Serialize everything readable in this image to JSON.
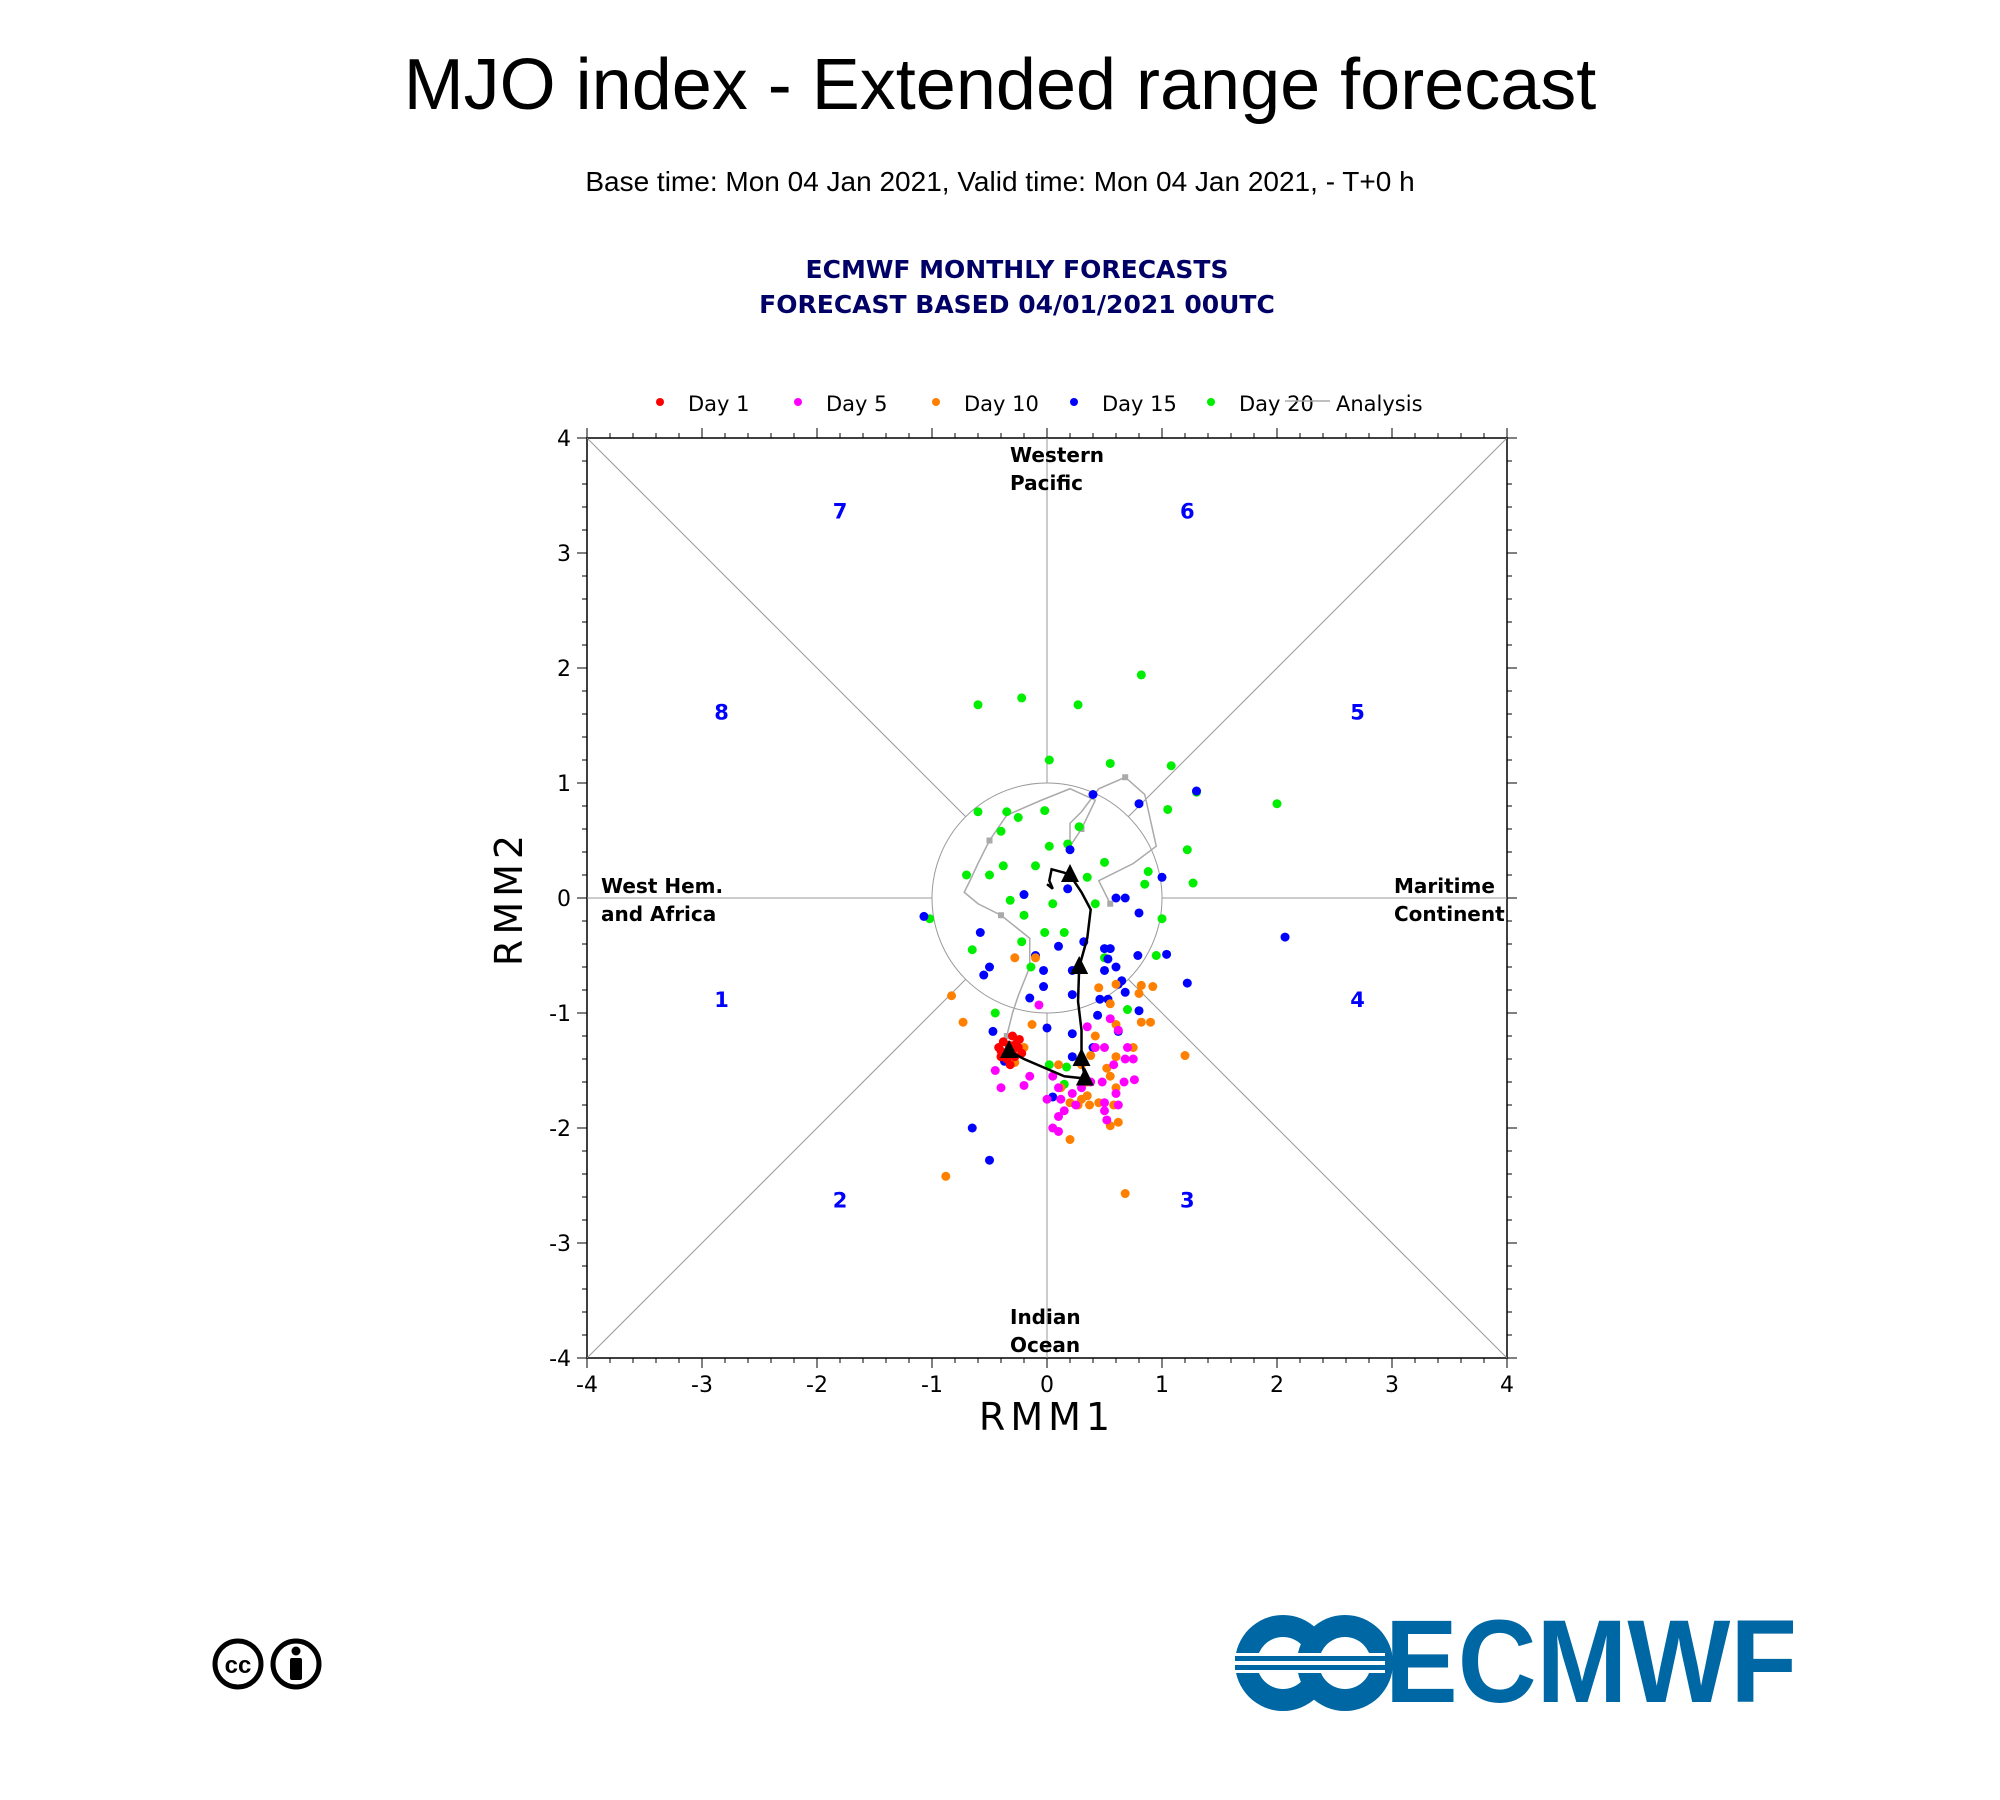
{
  "title": "MJO index - Extended range forecast",
  "subtitle": "Base time: Mon 04 Jan 2021, Valid time: Mon 04 Jan 2021, - T+0 h",
  "logo_text": "ECMWF",
  "colors": {
    "day1": "#ff0000",
    "day5": "#ff00ff",
    "day10": "#ff8000",
    "day15": "#0000ff",
    "day20": "#00ee00",
    "analysis": "#aaaaaa",
    "phase": "#0000ff",
    "header": "#000066"
  },
  "chart_data": {
    "type": "scatter",
    "header": [
      "ECMWF MONTHLY FORECASTS",
      "FORECAST  BASED 04/01/2021 00UTC"
    ],
    "xlabel": "RMM1",
    "ylabel": "RMM2",
    "xlim": [
      -4,
      4
    ],
    "ylim": [
      -4,
      4
    ],
    "xticks": [
      "-4",
      "-3",
      "-2",
      "-1",
      "0",
      "1",
      "2",
      "3",
      "4"
    ],
    "yticks": [
      "-4",
      "-3",
      "-2",
      "-1",
      "0",
      "1",
      "2",
      "3",
      "4"
    ],
    "regions": {
      "top": [
        "Western",
        "Pacific"
      ],
      "bottom": [
        "Indian",
        "Ocean"
      ],
      "left": [
        "West Hem.",
        "and Africa"
      ],
      "right": [
        "Maritime",
        "Continent"
      ]
    },
    "phases": [
      {
        "label": "1",
        "x": -2.83,
        "y": -0.88
      },
      {
        "label": "2",
        "x": -1.8,
        "y": -2.62
      },
      {
        "label": "3",
        "x": 1.22,
        "y": -2.62
      },
      {
        "label": "4",
        "x": 2.7,
        "y": -0.88
      },
      {
        "label": "5",
        "x": 2.7,
        "y": 1.62
      },
      {
        "label": "6",
        "x": 1.22,
        "y": 3.37
      },
      {
        "label": "7",
        "x": -1.8,
        "y": 3.37
      },
      {
        "label": "8",
        "x": -2.83,
        "y": 1.62
      }
    ],
    "legend": [
      "Day 1",
      "Day 5",
      "Day 10",
      "Day 15",
      "Day 20",
      "Analysis"
    ],
    "series": [
      {
        "name": "Day 1",
        "color": "#ff0000",
        "points": [
          [
            -0.42,
            -1.3
          ],
          [
            -0.4,
            -1.38
          ],
          [
            -0.38,
            -1.25
          ],
          [
            -0.33,
            -1.28
          ],
          [
            -0.3,
            -1.2
          ],
          [
            -0.27,
            -1.27
          ],
          [
            -0.25,
            -1.3
          ],
          [
            -0.22,
            -1.35
          ],
          [
            -0.35,
            -1.4
          ],
          [
            -0.28,
            -1.38
          ],
          [
            -0.32,
            -1.45
          ],
          [
            -0.24,
            -1.23
          ],
          [
            -0.4,
            -1.33
          ],
          [
            -0.3,
            -1.33
          ]
        ]
      },
      {
        "name": "Day 5",
        "color": "#ff00ff",
        "points": [
          [
            -0.07,
            -0.93
          ],
          [
            0.55,
            -1.05
          ],
          [
            0.35,
            -1.12
          ],
          [
            0.62,
            -1.15
          ],
          [
            0.42,
            -1.3
          ],
          [
            0.5,
            -1.3
          ],
          [
            0.7,
            -1.3
          ],
          [
            0.58,
            -1.45
          ],
          [
            0.68,
            -1.4
          ],
          [
            0.75,
            -1.4
          ],
          [
            -0.45,
            -1.5
          ],
          [
            -0.15,
            -1.55
          ],
          [
            0.05,
            -1.55
          ],
          [
            0.38,
            -1.6
          ],
          [
            0.48,
            -1.6
          ],
          [
            0.67,
            -1.6
          ],
          [
            0.76,
            -1.58
          ],
          [
            -0.2,
            -1.63
          ],
          [
            -0.4,
            -1.65
          ],
          [
            0.1,
            -1.65
          ],
          [
            0.3,
            -1.65
          ],
          [
            0.6,
            -1.7
          ],
          [
            0.0,
            -1.75
          ],
          [
            0.12,
            -1.75
          ],
          [
            0.22,
            -1.7
          ],
          [
            0.5,
            -1.78
          ],
          [
            0.62,
            -1.8
          ],
          [
            0.15,
            -1.85
          ],
          [
            0.1,
            -1.9
          ],
          [
            0.52,
            -1.93
          ],
          [
            0.05,
            -2.0
          ],
          [
            0.1,
            -2.03
          ],
          [
            0.5,
            -1.85
          ],
          [
            0.25,
            -1.8
          ]
        ]
      },
      {
        "name": "Day 10",
        "color": "#ff8000",
        "points": [
          [
            -0.83,
            -0.85
          ],
          [
            -0.1,
            -0.52
          ],
          [
            -0.28,
            -0.52
          ],
          [
            -0.73,
            -1.08
          ],
          [
            0.45,
            -0.78
          ],
          [
            0.6,
            -0.75
          ],
          [
            0.82,
            -0.76
          ],
          [
            0.92,
            -0.77
          ],
          [
            0.8,
            -0.83
          ],
          [
            -0.13,
            -1.1
          ],
          [
            0.55,
            -0.92
          ],
          [
            0.82,
            -1.08
          ],
          [
            0.9,
            -1.08
          ],
          [
            0.6,
            -1.1
          ],
          [
            0.42,
            -1.2
          ],
          [
            0.6,
            -1.38
          ],
          [
            0.38,
            -1.37
          ],
          [
            0.75,
            -1.3
          ],
          [
            1.2,
            -1.37
          ],
          [
            -0.2,
            -1.3
          ],
          [
            0.1,
            -1.45
          ],
          [
            0.3,
            -1.45
          ],
          [
            0.52,
            -1.48
          ],
          [
            0.35,
            -1.6
          ],
          [
            0.55,
            -1.55
          ],
          [
            0.6,
            -1.65
          ],
          [
            0.12,
            -1.65
          ],
          [
            0.2,
            -1.78
          ],
          [
            0.3,
            -1.75
          ],
          [
            0.35,
            -1.72
          ],
          [
            0.45,
            -1.78
          ],
          [
            0.58,
            -1.8
          ],
          [
            0.62,
            -1.95
          ],
          [
            0.55,
            -1.98
          ],
          [
            0.2,
            -2.1
          ],
          [
            -0.88,
            -2.42
          ],
          [
            0.68,
            -2.57
          ],
          [
            0.27,
            -1.8
          ],
          [
            0.37,
            -1.8
          ],
          [
            -0.28,
            -1.43
          ]
        ]
      },
      {
        "name": "Day 15",
        "color": "#0000ff",
        "points": [
          [
            0.4,
            0.9
          ],
          [
            0.8,
            0.82
          ],
          [
            1.3,
            0.93
          ],
          [
            0.2,
            0.42
          ],
          [
            1.0,
            0.18
          ],
          [
            0.18,
            0.08
          ],
          [
            0.6,
            0.0
          ],
          [
            0.68,
            0.0
          ],
          [
            -0.2,
            0.03
          ],
          [
            -1.07,
            -0.16
          ],
          [
            -0.58,
            -0.3
          ],
          [
            0.8,
            -0.13
          ],
          [
            2.07,
            -0.34
          ],
          [
            0.32,
            -0.38
          ],
          [
            0.1,
            -0.42
          ],
          [
            0.5,
            -0.44
          ],
          [
            0.55,
            -0.44
          ],
          [
            1.04,
            -0.49
          ],
          [
            -0.1,
            -0.5
          ],
          [
            -0.5,
            -0.6
          ],
          [
            -0.55,
            -0.67
          ],
          [
            -0.03,
            -0.63
          ],
          [
            0.22,
            -0.63
          ],
          [
            0.5,
            -0.63
          ],
          [
            0.6,
            -0.6
          ],
          [
            0.79,
            -0.5
          ],
          [
            0.65,
            -0.72
          ],
          [
            1.22,
            -0.74
          ],
          [
            -0.15,
            -0.87
          ],
          [
            0.22,
            -0.84
          ],
          [
            0.46,
            -0.88
          ],
          [
            0.53,
            -0.88
          ],
          [
            0.62,
            -0.75
          ],
          [
            0.68,
            -0.82
          ],
          [
            -0.03,
            -0.77
          ],
          [
            0.8,
            -0.98
          ],
          [
            0.44,
            -1.02
          ],
          [
            -0.47,
            -1.16
          ],
          [
            0.0,
            -1.13
          ],
          [
            0.22,
            -1.18
          ],
          [
            0.62,
            -1.16
          ],
          [
            0.4,
            -1.3
          ],
          [
            0.22,
            -1.38
          ],
          [
            -0.37,
            -1.42
          ],
          [
            0.05,
            -1.73
          ],
          [
            -0.65,
            -2.0
          ],
          [
            -0.5,
            -2.28
          ],
          [
            0.53,
            -0.53
          ]
        ]
      },
      {
        "name": "Day 20",
        "color": "#00ee00",
        "points": [
          [
            0.82,
            1.94
          ],
          [
            -0.6,
            1.68
          ],
          [
            -0.22,
            1.74
          ],
          [
            0.27,
            1.68
          ],
          [
            0.02,
            1.2
          ],
          [
            0.55,
            1.17
          ],
          [
            1.08,
            1.15
          ],
          [
            1.3,
            0.92
          ],
          [
            2.0,
            0.82
          ],
          [
            -0.6,
            0.75
          ],
          [
            -0.35,
            0.75
          ],
          [
            -0.25,
            0.7
          ],
          [
            -0.02,
            0.76
          ],
          [
            1.05,
            0.77
          ],
          [
            0.28,
            0.62
          ],
          [
            -0.4,
            0.58
          ],
          [
            0.02,
            0.45
          ],
          [
            0.18,
            0.47
          ],
          [
            0.5,
            0.31
          ],
          [
            1.22,
            0.42
          ],
          [
            -0.1,
            0.28
          ],
          [
            -0.7,
            0.2
          ],
          [
            -0.38,
            0.28
          ],
          [
            0.35,
            0.18
          ],
          [
            0.88,
            0.23
          ],
          [
            -0.5,
            0.2
          ],
          [
            0.85,
            0.12
          ],
          [
            1.27,
            0.13
          ],
          [
            0.05,
            -0.05
          ],
          [
            -0.32,
            -0.02
          ],
          [
            0.42,
            -0.05
          ],
          [
            -1.02,
            -0.18
          ],
          [
            -0.2,
            -0.15
          ],
          [
            1.0,
            -0.18
          ],
          [
            -0.02,
            -0.3
          ],
          [
            0.15,
            -0.3
          ],
          [
            -0.22,
            -0.38
          ],
          [
            0.5,
            -0.52
          ],
          [
            0.95,
            -0.5
          ],
          [
            -0.65,
            -0.45
          ],
          [
            -0.14,
            -0.6
          ],
          [
            0.7,
            -0.97
          ],
          [
            -0.45,
            -1.0
          ],
          [
            0.02,
            -1.45
          ],
          [
            0.17,
            -1.47
          ],
          [
            0.15,
            -1.62
          ]
        ]
      }
    ],
    "ensemble_mean": {
      "path": [
        [
          -0.33,
          -1.33
        ],
        [
          -0.2,
          -1.4
        ],
        [
          0.15,
          -1.55
        ],
        [
          0.33,
          -1.57
        ],
        [
          0.3,
          -1.4
        ],
        [
          0.3,
          -1.15
        ],
        [
          0.27,
          -0.9
        ],
        [
          0.28,
          -0.6
        ],
        [
          0.35,
          -0.35
        ],
        [
          0.38,
          -0.1
        ],
        [
          0.3,
          0.05
        ],
        [
          0.2,
          0.2
        ],
        [
          0.15,
          0.22
        ],
        [
          0.04,
          0.25
        ],
        [
          0.02,
          0.15
        ],
        [
          0.05,
          0.08
        ],
        [
          0.0,
          0.12
        ]
      ],
      "markers": [
        [
          -0.33,
          -1.33
        ],
        [
          0.33,
          -1.57
        ],
        [
          0.3,
          -1.4
        ],
        [
          0.28,
          -0.6
        ],
        [
          0.2,
          0.2
        ]
      ]
    },
    "analysis": {
      "path": [
        [
          -0.35,
          -1.2
        ],
        [
          -0.3,
          -1.0
        ],
        [
          -0.25,
          -0.85
        ],
        [
          -0.15,
          -0.6
        ],
        [
          -0.15,
          -0.35
        ],
        [
          -0.4,
          -0.15
        ],
        [
          -0.6,
          -0.05
        ],
        [
          -0.72,
          0.05
        ],
        [
          -0.67,
          0.15
        ],
        [
          -0.6,
          0.3
        ],
        [
          -0.5,
          0.5
        ],
        [
          -0.35,
          0.72
        ],
        [
          -0.05,
          0.85
        ],
        [
          0.2,
          0.95
        ],
        [
          0.42,
          0.85
        ],
        [
          0.3,
          0.6
        ],
        [
          0.2,
          0.45
        ],
        [
          0.2,
          0.65
        ],
        [
          0.3,
          0.75
        ],
        [
          0.45,
          0.95
        ],
        [
          0.68,
          1.05
        ],
        [
          0.85,
          0.9
        ],
        [
          0.95,
          0.45
        ],
        [
          0.75,
          0.3
        ],
        [
          0.45,
          0.15
        ],
        [
          0.55,
          -0.05
        ]
      ]
    }
  }
}
